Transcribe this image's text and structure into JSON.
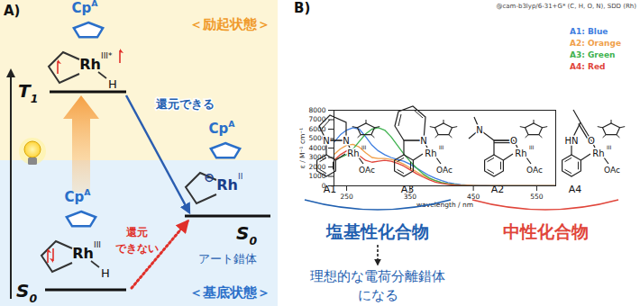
{
  "panel_a": {
    "label": "A)",
    "excited_state": "＜励起状態＞",
    "ground_state": "＜基底状態＞",
    "cp_label": {
      "main": "Cp",
      "sup": "A"
    },
    "t1": {
      "level": {
        "main": "T",
        "sub": "1"
      },
      "metal": "Rh",
      "oxidation": "III*",
      "ligand": "H"
    },
    "s0": {
      "level": {
        "main": "S",
        "sub": "0"
      },
      "metal": "Rh",
      "oxidation": "III",
      "ligand": "H"
    },
    "ate": {
      "level": {
        "main": "S",
        "sub": "0"
      },
      "metal": "Rh",
      "oxidation": "II",
      "charge": "⊖",
      "label": "アート錯体"
    },
    "arrow_excited": "還元できる",
    "arrow_ground": [
      "還元",
      "できない"
    ]
  },
  "chart_data": {
    "type": "line",
    "annotation": "@cam-b3lyp/6-31+G* (C, H, O, N), SDD (Rh)",
    "x_label": "wavelength / nm",
    "y_label": "ε / M⁻¹ cm⁻¹",
    "x": [
      230,
      240,
      250,
      260,
      270,
      280,
      290,
      300,
      310,
      320,
      330,
      340,
      350,
      360,
      370,
      380,
      390,
      400,
      410,
      420,
      430,
      440,
      450,
      460,
      470,
      480,
      490,
      500,
      520,
      540,
      560,
      580
    ],
    "series": [
      {
        "name": "A1: Blue",
        "color": "#3f7ee0",
        "values": [
          4600,
          5400,
          5900,
          6150,
          6000,
          5200,
          4300,
          3700,
          3300,
          3000,
          2800,
          2600,
          2300,
          1900,
          1500,
          1100,
          800,
          550,
          350,
          220,
          140,
          90,
          60,
          40,
          30,
          20,
          15,
          10,
          5,
          0,
          0,
          0
        ]
      },
      {
        "name": "A2: Orange",
        "color": "#f0a04b",
        "values": [
          3300,
          3900,
          4300,
          4400,
          4100,
          3500,
          3000,
          2900,
          2900,
          2800,
          2600,
          2300,
          1900,
          1500,
          1100,
          800,
          550,
          350,
          220,
          130,
          80,
          50,
          30,
          20,
          10,
          5,
          0,
          0,
          0,
          0,
          0,
          0
        ]
      },
      {
        "name": "A3: Green",
        "color": "#3fb24f",
        "values": [
          2800,
          3000,
          3300,
          3900,
          4700,
          5500,
          6000,
          6150,
          5900,
          5200,
          4300,
          3400,
          2600,
          1900,
          1300,
          850,
          550,
          350,
          200,
          120,
          70,
          40,
          20,
          10,
          5,
          0,
          0,
          0,
          0,
          0,
          0,
          0
        ]
      },
      {
        "name": "A4: Red",
        "color": "#e0453a",
        "values": [
          2700,
          3300,
          3700,
          3600,
          3200,
          2700,
          2500,
          2600,
          2700,
          2600,
          2400,
          2100,
          1700,
          1300,
          950,
          650,
          400,
          250,
          150,
          90,
          50,
          30,
          15,
          5,
          0,
          0,
          0,
          0,
          0,
          0,
          0,
          0
        ]
      }
    ],
    "xlim": [
      230,
      580
    ],
    "xticks": [
      250,
      350,
      450,
      550
    ],
    "ylim": [
      0,
      8000
    ],
    "yticks": [
      0,
      1000,
      2000,
      3000,
      4000,
      5000,
      6000,
      7000,
      8000
    ],
    "grid": false,
    "legend": "right"
  },
  "panel_b": {
    "label": "B)",
    "compounds": [
      {
        "id": "A1",
        "metal": "Rh",
        "oxidation": "III",
        "ligand": "OAc",
        "donor_atoms": [
          "N",
          "N"
        ]
      },
      {
        "id": "A3",
        "metal": "Rh",
        "oxidation": "III",
        "ligand": "OAc",
        "donor_atoms": [
          "N"
        ]
      },
      {
        "id": "A2",
        "metal": "Rh",
        "oxidation": "III",
        "ligand": "OAc",
        "donor_atoms": [
          "O",
          "N"
        ]
      },
      {
        "id": "A4",
        "metal": "Rh",
        "oxidation": "III",
        "ligand": "OAc",
        "donor_atoms": [
          "HN",
          "O"
        ]
      }
    ],
    "groups": [
      {
        "name": "塩基性化合物",
        "members": [
          "A1",
          "A3"
        ],
        "color": "#1f5fb0"
      },
      {
        "name": "中性化合物",
        "members": [
          "A2",
          "A4"
        ],
        "color": "#e0453a"
      }
    ],
    "conclusion": [
      "理想的な電荷分離錯体",
      "になる"
    ]
  }
}
